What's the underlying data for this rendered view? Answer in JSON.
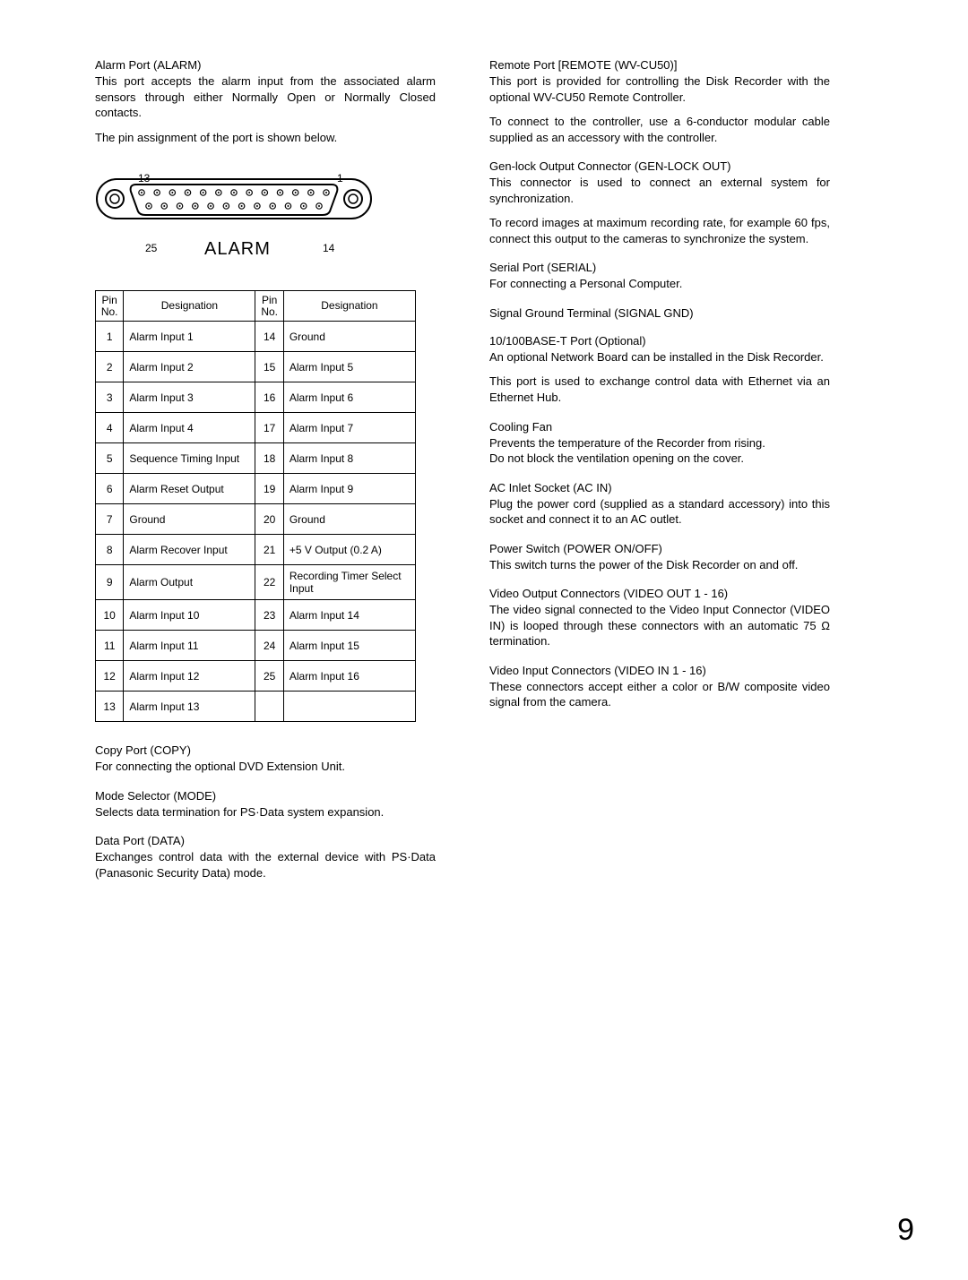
{
  "left": {
    "alarm_port": {
      "title": "Alarm Port (ALARM)",
      "p1": "This port accepts the alarm input from the associated alarm sensors through either Normally Open or Normally Closed contacts.",
      "p2": "The pin assignment of the port is shown below."
    },
    "diagram": {
      "label_13": "13",
      "label_1": "1",
      "label_25": "25",
      "label_14": "14",
      "caption": "ALARM",
      "pin_top_count": 13,
      "pin_bottom_count": 12,
      "colors": {
        "stroke": "#000000",
        "fill": "#ffffff"
      }
    },
    "table": {
      "headers": [
        "Pin No.",
        "Designation",
        "Pin No.",
        "Designation"
      ],
      "rows": [
        [
          "1",
          "Alarm Input 1",
          "14",
          "Ground"
        ],
        [
          "2",
          "Alarm Input 2",
          "15",
          "Alarm Input 5"
        ],
        [
          "3",
          "Alarm Input 3",
          "16",
          "Alarm Input 6"
        ],
        [
          "4",
          "Alarm Input 4",
          "17",
          "Alarm Input 7"
        ],
        [
          "5",
          "Sequence Timing Input",
          "18",
          "Alarm Input 8"
        ],
        [
          "6",
          "Alarm Reset Output",
          "19",
          "Alarm Input 9"
        ],
        [
          "7",
          "Ground",
          "20",
          "Ground"
        ],
        [
          "8",
          "Alarm Recover Input",
          "21",
          "+5 V Output (0.2 A)"
        ],
        [
          "9",
          "Alarm Output",
          "22",
          "Recording Timer Select Input"
        ],
        [
          "10",
          "Alarm Input 10",
          "23",
          "Alarm Input 14"
        ],
        [
          "11",
          "Alarm Input 11",
          "24",
          "Alarm Input 15"
        ],
        [
          "12",
          "Alarm Input 12",
          "25",
          "Alarm Input 16"
        ],
        [
          "13",
          "Alarm Input 13",
          "",
          ""
        ]
      ]
    },
    "copy_port": {
      "title": "Copy Port (COPY)",
      "body": "For connecting the optional DVD Extension Unit."
    },
    "mode_selector": {
      "title": "Mode Selector (MODE)",
      "body": "Selects data termination for PS·Data system expansion."
    },
    "data_port": {
      "title": "Data Port (DATA)",
      "body": "Exchanges control data with the external device with PS·Data (Panasonic Security Data) mode."
    }
  },
  "right": {
    "remote_port": {
      "title": "Remote Port [REMOTE (WV-CU50)]",
      "p1": "This port is provided for controlling the Disk Recorder with the optional WV-CU50 Remote Controller.",
      "p2": "To connect to the controller, use a 6-conductor modular cable supplied as an accessory with the controller."
    },
    "genlock": {
      "title": "Gen-lock Output Connector (GEN-LOCK OUT)",
      "p1": "This connector is used to connect an external system for synchronization.",
      "p2": "To record images at maximum recording rate, for example 60 fps, connect this output to the cameras to synchronize the system."
    },
    "serial": {
      "title": "Serial Port (SERIAL)",
      "body": "For connecting a Personal Computer."
    },
    "signal_gnd": {
      "title": "Signal Ground Terminal (SIGNAL GND)"
    },
    "ethernet": {
      "title": "10/100BASE-T Port (Optional)",
      "p1": "An optional Network Board can be installed in the Disk Recorder.",
      "p2": "This port is used to exchange control data with Ethernet via an Ethernet Hub."
    },
    "cooling_fan": {
      "title": "Cooling Fan",
      "p1": "Prevents the temperature of the Recorder from rising.",
      "p2": "Do not block the ventilation opening on the cover."
    },
    "ac_inlet": {
      "title": "AC Inlet Socket (AC IN)",
      "body": "Plug the power cord (supplied as a standard accessory) into this socket and connect it to an AC outlet."
    },
    "power_switch": {
      "title": "Power Switch (POWER ON/OFF)",
      "body": "This switch turns the power of the Disk Recorder on and off."
    },
    "video_out": {
      "title": "Video Output Connectors (VIDEO OUT 1 - 16)",
      "body": "The video signal connected to the Video Input Connector (VIDEO IN) is looped through these connectors with an automatic 75 Ω termination."
    },
    "video_in": {
      "title": "Video Input Connectors (VIDEO IN 1 - 16)",
      "body": "These connectors accept either a color or B/W composite video signal from the camera."
    }
  },
  "page_number": "9"
}
